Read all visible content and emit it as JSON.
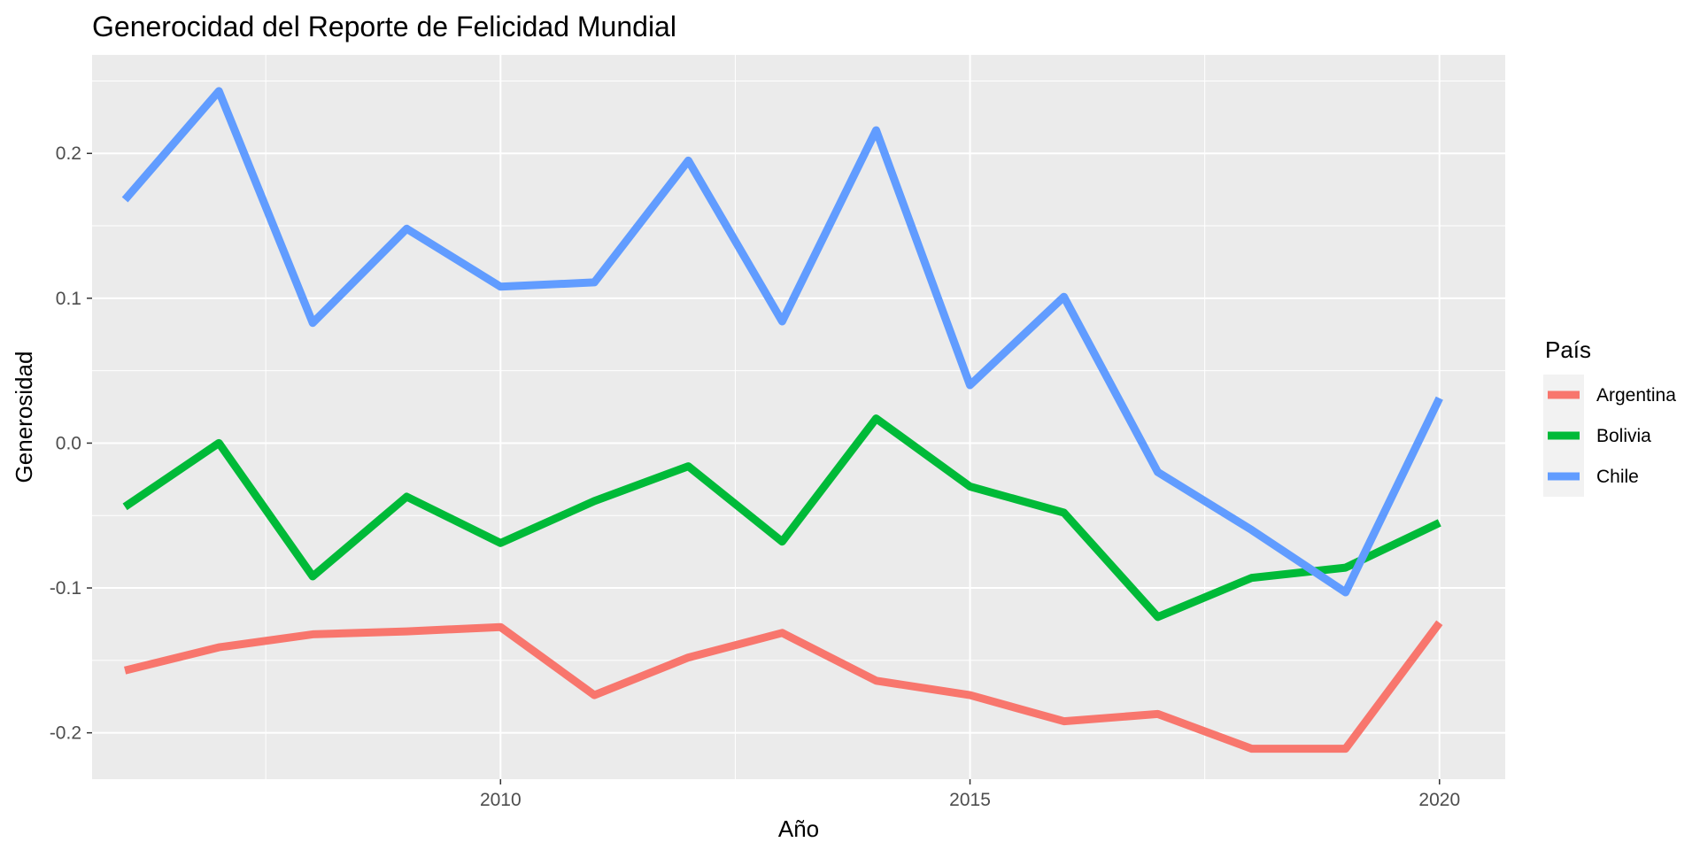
{
  "chart_data": {
    "type": "line",
    "title": "Generocidad del Reporte de Felicidad Mundial",
    "xlabel": "Año",
    "ylabel": "Generosidad",
    "x": [
      2006,
      2007,
      2008,
      2009,
      2010,
      2011,
      2012,
      2013,
      2014,
      2015,
      2016,
      2017,
      2018,
      2019,
      2020
    ],
    "xlim": [
      2005.65,
      2020.7
    ],
    "ylim": [
      -0.232,
      0.268
    ],
    "x_ticks": [
      2010,
      2015,
      2020
    ],
    "x_tick_labels": [
      "2010",
      "2015",
      "2020"
    ],
    "y_ticks": [
      -0.2,
      -0.1,
      0.0,
      0.1,
      0.2
    ],
    "y_tick_labels": [
      "-0.2",
      "-0.1",
      "0.0",
      "0.1",
      "0.2"
    ],
    "x_minor_ticks": [
      2007.5,
      2012.5,
      2017.5
    ],
    "y_minor_ticks": [
      -0.15,
      -0.05,
      0.05,
      0.15,
      0.25
    ],
    "grid": true,
    "legend_position": "right",
    "legend_title": "País",
    "series": [
      {
        "name": "Argentina",
        "color": "#F8766D",
        "values": [
          -0.157,
          -0.141,
          -0.132,
          -0.13,
          -0.127,
          -0.174,
          -0.148,
          -0.131,
          -0.164,
          -0.174,
          -0.192,
          -0.187,
          -0.211,
          -0.211,
          -0.124
        ]
      },
      {
        "name": "Bolivia",
        "color": "#00BA38",
        "values": [
          -0.044,
          0.0,
          -0.092,
          -0.037,
          -0.069,
          -0.04,
          -0.016,
          -0.068,
          0.017,
          -0.03,
          -0.048,
          -0.12,
          -0.093,
          -0.086,
          -0.055
        ]
      },
      {
        "name": "Chile",
        "color": "#619CFF",
        "values": [
          0.168,
          0.243,
          0.083,
          0.148,
          0.108,
          0.111,
          0.195,
          0.084,
          0.216,
          0.04,
          0.101,
          -0.02,
          -0.06,
          -0.103,
          0.031
        ]
      }
    ]
  }
}
